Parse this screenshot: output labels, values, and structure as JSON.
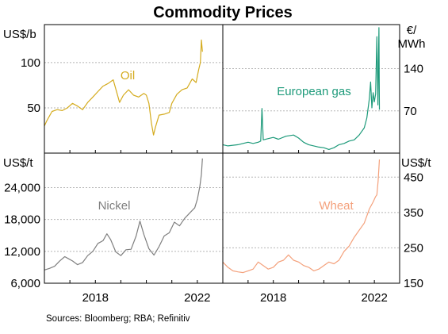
{
  "title": "Commodity Prices",
  "source": "Sources: Bloomberg; RBA; Refinitiv",
  "chart_data": [
    {
      "type": "line",
      "panel": "top-left",
      "unit_label": "US$/b",
      "yticks": [
        50,
        100
      ],
      "ylim": [
        0,
        142
      ],
      "xlim": [
        2016.0,
        2023.0
      ],
      "xticks": [],
      "series": [
        {
          "name": "Oil",
          "color": "#d4ab1e",
          "x": [
            2016.0,
            2016.1,
            2016.3,
            2016.5,
            2016.7,
            2016.9,
            2017.1,
            2017.3,
            2017.5,
            2017.7,
            2017.9,
            2018.1,
            2018.3,
            2018.5,
            2018.7,
            2018.85,
            2018.95,
            2019.1,
            2019.3,
            2019.5,
            2019.7,
            2019.9,
            2020.0,
            2020.1,
            2020.2,
            2020.28,
            2020.35,
            2020.5,
            2020.7,
            2020.9,
            2021.0,
            2021.2,
            2021.4,
            2021.6,
            2021.8,
            2021.95,
            2022.05,
            2022.12,
            2022.16,
            2022.2
          ],
          "values": [
            30,
            36,
            46,
            48,
            47,
            50,
            55,
            52,
            48,
            56,
            62,
            68,
            74,
            77,
            81,
            66,
            56,
            64,
            70,
            64,
            62,
            66,
            64,
            55,
            33,
            20,
            28,
            42,
            43,
            45,
            55,
            65,
            70,
            72,
            82,
            78,
            92,
            100,
            125,
            112
          ]
        }
      ]
    },
    {
      "type": "line",
      "panel": "top-right",
      "unit_label": [
        "€/",
        "MWh"
      ],
      "yticks": [
        70,
        140
      ],
      "ylim": [
        0,
        213
      ],
      "xlim": [
        2016.0,
        2023.0
      ],
      "xticks": [],
      "series": [
        {
          "name": "European gas",
          "color": "#1d9a7a",
          "x": [
            2016.0,
            2016.2,
            2016.4,
            2016.6,
            2016.8,
            2017.0,
            2017.2,
            2017.4,
            2017.5,
            2017.55,
            2017.6,
            2017.8,
            2018.0,
            2018.2,
            2018.5,
            2018.8,
            2019.0,
            2019.2,
            2019.4,
            2019.6,
            2019.8,
            2020.0,
            2020.2,
            2020.4,
            2020.6,
            2020.8,
            2021.0,
            2021.2,
            2021.4,
            2021.6,
            2021.7,
            2021.8,
            2021.85,
            2021.9,
            2021.95,
            2022.0,
            2022.05,
            2022.1,
            2022.14,
            2022.18,
            2022.2
          ],
          "values": [
            14,
            12,
            13,
            14,
            16,
            18,
            16,
            18,
            20,
            74,
            22,
            24,
            26,
            23,
            28,
            30,
            25,
            18,
            14,
            12,
            10,
            9,
            6,
            9,
            14,
            16,
            20,
            22,
            30,
            42,
            58,
            90,
            118,
            75,
            100,
            85,
            98,
            193,
            80,
            208,
            72
          ]
        }
      ]
    },
    {
      "type": "line",
      "panel": "bottom-left",
      "unit_label": "US$/t",
      "yticks": [
        6000,
        12000,
        18000,
        24000
      ],
      "ylim": [
        6000,
        30500
      ],
      "xlim": [
        2016.0,
        2023.0
      ],
      "xticks": [
        2018,
        2022
      ],
      "series": [
        {
          "name": "Nickel",
          "color": "#7f7f7f",
          "x": [
            2016.0,
            2016.2,
            2016.4,
            2016.6,
            2016.8,
            2016.95,
            2017.1,
            2017.3,
            2017.5,
            2017.7,
            2017.9,
            2018.1,
            2018.3,
            2018.45,
            2018.6,
            2018.8,
            2019.0,
            2019.2,
            2019.4,
            2019.6,
            2019.75,
            2019.9,
            2020.1,
            2020.3,
            2020.5,
            2020.7,
            2020.9,
            2021.1,
            2021.3,
            2021.5,
            2021.7,
            2021.9,
            2022.0,
            2022.1,
            2022.16,
            2022.2
          ],
          "values": [
            8500,
            8800,
            9200,
            10200,
            11000,
            10600,
            10200,
            9500,
            9900,
            11200,
            12000,
            13500,
            14000,
            15300,
            14200,
            11900,
            11200,
            12300,
            12400,
            14900,
            17700,
            15200,
            12500,
            11300,
            12900,
            14900,
            15500,
            17500,
            16800,
            18200,
            19200,
            20200,
            21800,
            24300,
            26500,
            29500
          ]
        }
      ]
    },
    {
      "type": "line",
      "panel": "bottom-right",
      "unit_label": "US$/t",
      "yticks": [
        150,
        250,
        350,
        450
      ],
      "ylim": [
        150,
        518
      ],
      "xlim": [
        2016.0,
        2023.0
      ],
      "xticks": [
        2018,
        2022
      ],
      "series": [
        {
          "name": "Wheat",
          "color": "#f4a17c",
          "x": [
            2016.0,
            2016.2,
            2016.4,
            2016.6,
            2016.8,
            2017.0,
            2017.2,
            2017.4,
            2017.6,
            2017.8,
            2018.0,
            2018.2,
            2018.4,
            2018.6,
            2018.8,
            2019.0,
            2019.2,
            2019.4,
            2019.6,
            2019.8,
            2020.0,
            2020.2,
            2020.4,
            2020.6,
            2020.8,
            2021.0,
            2021.2,
            2021.4,
            2021.6,
            2021.8,
            2021.95,
            2022.05,
            2022.1,
            2022.15,
            2022.2
          ],
          "values": [
            210,
            195,
            185,
            182,
            180,
            185,
            190,
            210,
            200,
            190,
            195,
            210,
            215,
            230,
            215,
            210,
            200,
            195,
            185,
            190,
            200,
            210,
            205,
            215,
            240,
            255,
            280,
            300,
            320,
            360,
            380,
            395,
            400,
            440,
            500
          ]
        }
      ]
    }
  ]
}
